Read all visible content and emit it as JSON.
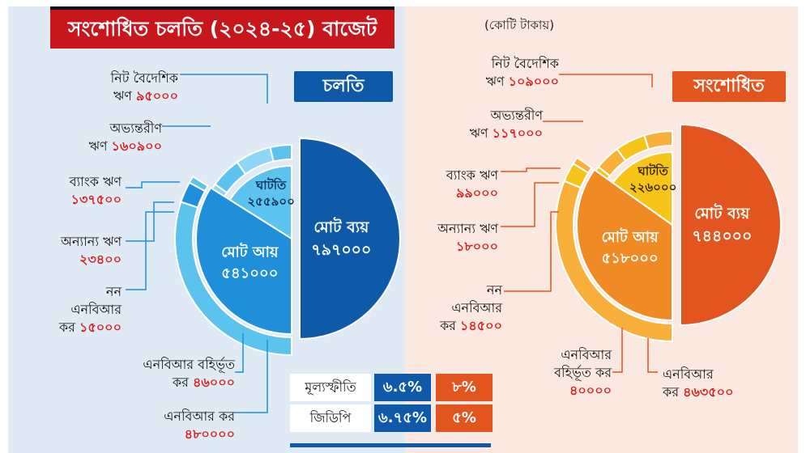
{
  "header": {
    "title": "সংশোধিত চলতি (২০২৪-২৫) বাজেট",
    "unit": "(কোটি টাকায়)"
  },
  "panels": {
    "current_tag": "চলতি",
    "revised_tag": "সংশোধিত"
  },
  "chart_data": [
    {
      "type": "pie",
      "name": "চলতি",
      "center_labels": {
        "expenditure": [
          "মোট ব্যয়",
          "৭৯৭০০০"
        ],
        "income": [
          "মোট আয়",
          "৫৪১০০০"
        ],
        "deficit": [
          "ঘাটতি",
          "২৫৫৯০০"
        ]
      },
      "expenditure": 797000,
      "income": 541000,
      "deficit": 255900,
      "income_breakdown": [
        {
          "label": "এনবিআর কর",
          "value": 480000,
          "text": "৪৮০০০০"
        },
        {
          "label": "এনবিআর বহির্ভূত কর",
          "value": 46000,
          "text": "৪৬০০০"
        },
        {
          "label": "নন এনবিআর কর",
          "value": 15000,
          "text": "১৫০০০"
        }
      ],
      "deficit_breakdown": [
        {
          "label": "অন্যান্য ঋণ",
          "value": 23400,
          "text": "২৩৪০০"
        },
        {
          "label": "ব্যাংক ঋণ",
          "value": 137500,
          "text": "১৩৭৫০০"
        },
        {
          "label": "অভ্যন্তরীণ ঋণ",
          "value": 160900,
          "text": "১৬০৯০০"
        },
        {
          "label": "নিট বৈদেশিক ঋণ",
          "value": 95000,
          "text": "৯৫০০০"
        }
      ]
    },
    {
      "type": "pie",
      "name": "সংশোধিত",
      "center_labels": {
        "expenditure": [
          "মোট ব্যয়",
          "৭৪৪০০০"
        ],
        "income": [
          "মোট আয়",
          "৫১৮০০০"
        ],
        "deficit": [
          "ঘাটতি",
          "২২৬০০০"
        ]
      },
      "expenditure": 744000,
      "income": 518000,
      "deficit": 226000,
      "income_breakdown": [
        {
          "label": "এনবিআর কর",
          "value": 463500,
          "text": "৪৬৩৫০০"
        },
        {
          "label": "এনবিআর বহির্ভূত কর",
          "value": 40000,
          "text": "৪০০০০"
        },
        {
          "label": "নন এনবিআর কর",
          "value": 14500,
          "text": "১৪৫০০"
        }
      ],
      "deficit_breakdown": [
        {
          "label": "অন্যান্য ঋণ",
          "value": 18000,
          "text": "১৮০০০"
        },
        {
          "label": "ব্যাংক ঋণ",
          "value": 99000,
          "text": "৯৯০০০"
        },
        {
          "label": "অভ্যন্তরীণ ঋণ",
          "value": 117000,
          "text": "১১৭০০০"
        },
        {
          "label": "নিট বৈদেশিক ঋণ",
          "value": 109000,
          "text": "১০৯০০০"
        }
      ]
    }
  ],
  "labels_left": {
    "foreign_a": "নিট বৈদেশিক",
    "foreign_b": "ঋণ",
    "foreign_v": "৯৫০০০",
    "domestic_a": "অভ্যন্তরীণ",
    "domestic_b": "ঋণ",
    "domestic_v": "১৬০৯০০",
    "bank_a": "ব্যাংক ঋণ",
    "bank_v": "১৩৭৫০০",
    "other_a": "অন্যান্য ঋণ",
    "other_v": "২৩৪০০",
    "non_a": "নন",
    "non_b": "এনবিআর",
    "non_c": "কর",
    "non_v": "১৫০০০",
    "outside_a": "এনবিআর বহির্ভূত",
    "outside_b": "কর",
    "outside_v": "৪৬০০০",
    "nbr_a": "এনবিআর কর",
    "nbr_v": "৪৮০০০০"
  },
  "labels_right": {
    "foreign_a": "নিট বৈদেশিক",
    "foreign_b": "ঋণ",
    "foreign_v": "১০৯০০০",
    "domestic_a": "অভ্যন্তরীণ",
    "domestic_b": "ঋণ",
    "domestic_v": "১১৭০০০",
    "bank_a": "ব্যাংক ঋণ",
    "bank_v": "৯৯০০০",
    "other_a": "অন্যান্য ঋণ",
    "other_v": "১৮০০০",
    "non_a": "নন",
    "non_b": "এনবিআর",
    "non_c": "কর",
    "non_v": "১৪৫০০",
    "outside_a": "এনবিআর",
    "outside_b": "বহির্ভূত কর",
    "outside_v": "৪০০০০",
    "nbr_a": "এনবিআর",
    "nbr_b": "কর",
    "nbr_v": "৪৬৩৫০০"
  },
  "indicators": {
    "rows": [
      {
        "name": "মূল্যস্ফীতি",
        "current": "৬.৫%",
        "revised": "৮%"
      },
      {
        "name": "জিডিপি",
        "current": "৬.৭৫%",
        "revised": "৫%"
      }
    ]
  },
  "colors": {
    "title_bg": "#c8161d",
    "left_panel": "#dfeaf4",
    "right_panel": "#fbe9e1",
    "blue_dark": "#0f5aa8",
    "blue_mid": "#1e8fd8",
    "blue_light": "#5cc3ef",
    "orange_dark": "#e2551e",
    "orange_mid": "#f08a24",
    "yellow": "#f7c51a",
    "value_red": "#d71d1d"
  }
}
